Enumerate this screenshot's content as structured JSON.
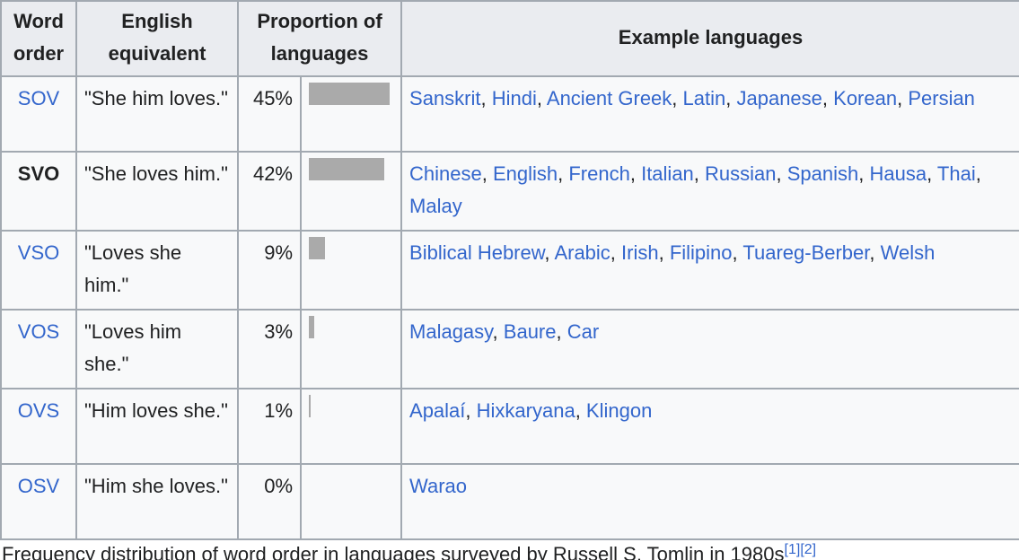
{
  "table": {
    "headers": {
      "word_order": "Word order",
      "english": "English equivalent",
      "proportion": "Proportion of languages",
      "examples": "Example languages"
    },
    "rows": [
      {
        "order": "SOV",
        "order_is_link": true,
        "english": "\"She him loves.\"",
        "percent": "45%",
        "bar_fraction": 0.45,
        "languages": [
          "Sanskrit",
          "Hindi",
          "Ancient Greek",
          "Latin",
          "Japanese",
          "Korean",
          "Persian"
        ]
      },
      {
        "order": "SVO",
        "order_is_link": false,
        "english": "\"She loves him.\"",
        "percent": "42%",
        "bar_fraction": 0.42,
        "languages": [
          "Chinese",
          "English",
          "French",
          "Italian",
          "Russian",
          "Spanish",
          "Hausa",
          "Thai",
          "Malay"
        ]
      },
      {
        "order": "VSO",
        "order_is_link": true,
        "english": "\"Loves she him.\"",
        "percent": "9%",
        "bar_fraction": 0.09,
        "languages": [
          "Biblical Hebrew",
          "Arabic",
          "Irish",
          "Filipino",
          "Tuareg-Berber",
          "Welsh"
        ]
      },
      {
        "order": "VOS",
        "order_is_link": true,
        "english": "\"Loves him she.\"",
        "percent": "3%",
        "bar_fraction": 0.03,
        "languages": [
          "Malagasy",
          "Baure",
          "Car"
        ]
      },
      {
        "order": "OVS",
        "order_is_link": true,
        "english": "\"Him loves she.\"",
        "percent": "1%",
        "bar_fraction": 0.01,
        "languages": [
          "Apalaí",
          "Hixkaryana",
          "Klingon"
        ]
      },
      {
        "order": "OSV",
        "order_is_link": true,
        "english": "\"Him she loves.\"",
        "percent": "0%",
        "bar_fraction": 0.0,
        "languages": [
          "Warao"
        ]
      }
    ]
  },
  "caption": {
    "text": "Frequency distribution of word order in languages surveyed by Russell S. Tomlin in 1980s",
    "refs": [
      "[1]",
      "[2]"
    ]
  },
  "colors": {
    "link": "#3366cc",
    "bar": "#aaaaaa",
    "header_bg": "#eaecf0",
    "border": "#a2a9b1"
  }
}
